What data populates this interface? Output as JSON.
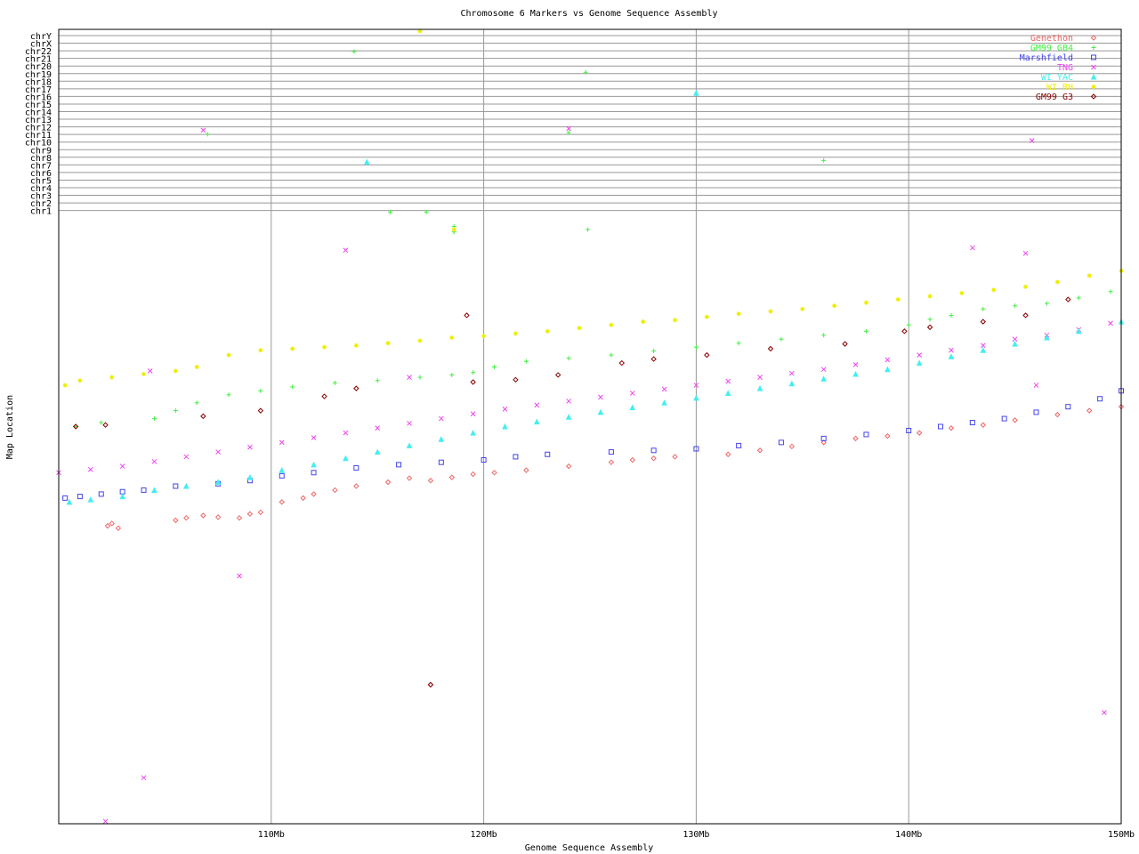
{
  "chart_data": {
    "type": "scatter",
    "title": "Chromosome 6 Markers vs Genome Sequence Assembly",
    "xlabel": "Genome Sequence Assembly",
    "ylabel": "Map Location",
    "xlim": [
      100,
      150
    ],
    "x_ticks": [
      {
        "value": 110,
        "label": "110Mb"
      },
      {
        "value": 120,
        "label": "120Mb"
      },
      {
        "value": 130,
        "label": "130Mb"
      },
      {
        "value": 140,
        "label": "140Mb"
      },
      {
        "value": 150,
        "label": "150Mb"
      }
    ],
    "grid": true,
    "legend_position": "top-right",
    "chromosome_lanes": [
      "chr1",
      "chr2",
      "chr3",
      "chr4",
      "chr5",
      "chr6",
      "chr7",
      "chr8",
      "chr9",
      "chr10",
      "chr11",
      "chr12",
      "chr13",
      "chr14",
      "chr15",
      "chr16",
      "chr17",
      "chr18",
      "chr19",
      "chr20",
      "chr21",
      "chr22",
      "chrX",
      "chrY"
    ],
    "series": [
      {
        "name": "Genethon",
        "color": "#ee6666",
        "marker": "diamond",
        "points": [
          [
            102.3,
            0.375
          ],
          [
            102.5,
            0.378
          ],
          [
            102.8,
            0.372
          ],
          [
            105.5,
            0.382
          ],
          [
            106.0,
            0.385
          ],
          [
            106.8,
            0.388
          ],
          [
            107.5,
            0.386
          ],
          [
            108.5,
            0.385
          ],
          [
            109.0,
            0.39
          ],
          [
            109.5,
            0.392
          ],
          [
            110.5,
            0.405
          ],
          [
            111.5,
            0.41
          ],
          [
            112.0,
            0.415
          ],
          [
            113.0,
            0.42
          ],
          [
            114.0,
            0.425
          ],
          [
            115.5,
            0.43
          ],
          [
            116.5,
            0.435
          ],
          [
            117.5,
            0.432
          ],
          [
            118.5,
            0.436
          ],
          [
            119.5,
            0.44
          ],
          [
            120.5,
            0.442
          ],
          [
            122.0,
            0.445
          ],
          [
            124.0,
            0.45
          ],
          [
            126.0,
            0.455
          ],
          [
            127.0,
            0.458
          ],
          [
            128.0,
            0.46
          ],
          [
            129.0,
            0.462
          ],
          [
            131.5,
            0.465
          ],
          [
            133.0,
            0.47
          ],
          [
            134.5,
            0.475
          ],
          [
            136.0,
            0.48
          ],
          [
            137.5,
            0.485
          ],
          [
            139.0,
            0.488
          ],
          [
            140.5,
            0.492
          ],
          [
            142.0,
            0.498
          ],
          [
            143.5,
            0.502
          ],
          [
            145.0,
            0.508
          ],
          [
            147.0,
            0.515
          ],
          [
            148.5,
            0.52
          ],
          [
            150.0,
            0.525
          ],
          [
            117.5,
            0.175
          ]
        ]
      },
      {
        "name": "GM99 GB4",
        "color": "#44ee44",
        "marker": "plus",
        "points": [
          [
            100.8,
            0.5
          ],
          [
            102.0,
            0.505
          ],
          [
            104.5,
            0.51
          ],
          [
            105.5,
            0.52
          ],
          [
            106.5,
            0.53
          ],
          [
            108.0,
            0.54
          ],
          [
            109.5,
            0.545
          ],
          [
            111.0,
            0.55
          ],
          [
            113.0,
            0.555
          ],
          [
            115.0,
            0.558
          ],
          [
            117.0,
            0.562
          ],
          [
            118.5,
            0.565
          ],
          [
            119.5,
            0.568
          ],
          [
            120.5,
            0.575
          ],
          [
            122.0,
            0.582
          ],
          [
            124.0,
            0.586
          ],
          [
            126.0,
            0.59
          ],
          [
            128.0,
            0.595
          ],
          [
            130.0,
            0.6
          ],
          [
            132.0,
            0.605
          ],
          [
            134.0,
            0.61
          ],
          [
            136.0,
            0.615
          ],
          [
            138.0,
            0.62
          ],
          [
            140.0,
            0.628
          ],
          [
            141.0,
            0.635
          ],
          [
            142.0,
            0.64
          ],
          [
            143.5,
            0.648
          ],
          [
            145.0,
            0.652
          ],
          [
            146.5,
            0.655
          ],
          [
            148.0,
            0.662
          ],
          [
            149.5,
            0.67
          ],
          [
            118.6,
            0.745
          ],
          [
            118.6,
            0.752
          ],
          [
            107.0,
            0.868
          ],
          [
            113.9,
            0.972
          ],
          [
            124.8,
            0.946
          ],
          [
            124.0,
            0.87
          ],
          [
            136.0,
            0.835
          ],
          [
            115.6,
            0.77
          ],
          [
            117.3,
            0.77
          ],
          [
            124.9,
            0.748
          ]
        ]
      },
      {
        "name": "Marshfield",
        "color": "#4444ee",
        "marker": "square",
        "points": [
          [
            100.3,
            0.41
          ],
          [
            101.0,
            0.412
          ],
          [
            102.0,
            0.415
          ],
          [
            103.0,
            0.418
          ],
          [
            104.0,
            0.42
          ],
          [
            105.5,
            0.425
          ],
          [
            107.5,
            0.428
          ],
          [
            109.0,
            0.432
          ],
          [
            110.5,
            0.438
          ],
          [
            112.0,
            0.442
          ],
          [
            114.0,
            0.448
          ],
          [
            116.0,
            0.452
          ],
          [
            118.0,
            0.455
          ],
          [
            120.0,
            0.458
          ],
          [
            121.5,
            0.462
          ],
          [
            123.0,
            0.465
          ],
          [
            126.0,
            0.468
          ],
          [
            128.0,
            0.47
          ],
          [
            130.0,
            0.472
          ],
          [
            132.0,
            0.476
          ],
          [
            134.0,
            0.48
          ],
          [
            136.0,
            0.485
          ],
          [
            138.0,
            0.49
          ],
          [
            140.0,
            0.495
          ],
          [
            141.5,
            0.5
          ],
          [
            143.0,
            0.505
          ],
          [
            144.5,
            0.51
          ],
          [
            146.0,
            0.518
          ],
          [
            147.5,
            0.525
          ],
          [
            149.0,
            0.535
          ],
          [
            150.0,
            0.545
          ]
        ]
      },
      {
        "name": "TNG",
        "color": "#ee44ee",
        "marker": "cross",
        "points": [
          [
            100.0,
            0.442
          ],
          [
            101.5,
            0.446
          ],
          [
            103.0,
            0.45
          ],
          [
            104.5,
            0.456
          ],
          [
            106.0,
            0.462
          ],
          [
            107.5,
            0.468
          ],
          [
            109.0,
            0.474
          ],
          [
            110.5,
            0.48
          ],
          [
            112.0,
            0.486
          ],
          [
            113.5,
            0.492
          ],
          [
            115.0,
            0.498
          ],
          [
            116.5,
            0.504
          ],
          [
            118.0,
            0.51
          ],
          [
            119.5,
            0.516
          ],
          [
            121.0,
            0.522
          ],
          [
            122.5,
            0.527
          ],
          [
            124.0,
            0.532
          ],
          [
            125.5,
            0.537
          ],
          [
            127.0,
            0.542
          ],
          [
            128.5,
            0.547
          ],
          [
            130.0,
            0.552
          ],
          [
            131.5,
            0.557
          ],
          [
            133.0,
            0.562
          ],
          [
            134.5,
            0.567
          ],
          [
            136.0,
            0.572
          ],
          [
            137.5,
            0.578
          ],
          [
            139.0,
            0.584
          ],
          [
            140.5,
            0.59
          ],
          [
            142.0,
            0.596
          ],
          [
            143.5,
            0.602
          ],
          [
            145.0,
            0.61
          ],
          [
            146.5,
            0.615
          ],
          [
            148.0,
            0.622
          ],
          [
            149.5,
            0.63
          ],
          [
            143.0,
            0.725
          ],
          [
            145.5,
            0.718
          ],
          [
            113.5,
            0.722
          ],
          [
            104.3,
            0.57
          ],
          [
            116.5,
            0.562
          ],
          [
            108.5,
            0.312
          ],
          [
            104.0,
            0.058
          ],
          [
            102.2,
            0.003
          ],
          [
            106.8,
            0.873
          ],
          [
            124.0,
            0.875
          ],
          [
            145.8,
            0.86
          ],
          [
            149.2,
            0.14
          ],
          [
            146.0,
            0.552
          ]
        ]
      },
      {
        "name": "WI YAC",
        "color": "#44eeee",
        "marker": "triangle",
        "points": [
          [
            100.5,
            0.405
          ],
          [
            101.5,
            0.408
          ],
          [
            103.0,
            0.412
          ],
          [
            104.5,
            0.42
          ],
          [
            106.0,
            0.425
          ],
          [
            107.5,
            0.43
          ],
          [
            109.0,
            0.436
          ],
          [
            110.5,
            0.445
          ],
          [
            112.0,
            0.452
          ],
          [
            113.5,
            0.46
          ],
          [
            115.0,
            0.468
          ],
          [
            116.5,
            0.476
          ],
          [
            118.0,
            0.484
          ],
          [
            119.5,
            0.492
          ],
          [
            121.0,
            0.5
          ],
          [
            122.5,
            0.506
          ],
          [
            124.0,
            0.512
          ],
          [
            125.5,
            0.518
          ],
          [
            127.0,
            0.524
          ],
          [
            128.5,
            0.53
          ],
          [
            130.0,
            0.536
          ],
          [
            131.5,
            0.542
          ],
          [
            133.0,
            0.548
          ],
          [
            134.5,
            0.554
          ],
          [
            136.0,
            0.56
          ],
          [
            137.5,
            0.566
          ],
          [
            139.0,
            0.572
          ],
          [
            140.5,
            0.58
          ],
          [
            142.0,
            0.588
          ],
          [
            143.5,
            0.596
          ],
          [
            145.0,
            0.604
          ],
          [
            146.5,
            0.612
          ],
          [
            148.0,
            0.62
          ],
          [
            150.0,
            0.632
          ],
          [
            114.5,
            0.833
          ],
          [
            130.0,
            0.92
          ]
        ]
      },
      {
        "name": "WI RH",
        "color": "#eeee00",
        "marker": "star",
        "points": [
          [
            100.3,
            0.552
          ],
          [
            101.0,
            0.558
          ],
          [
            102.5,
            0.562
          ],
          [
            104.0,
            0.566
          ],
          [
            105.5,
            0.57
          ],
          [
            106.5,
            0.575
          ],
          [
            108.0,
            0.59
          ],
          [
            109.5,
            0.596
          ],
          [
            111.0,
            0.598
          ],
          [
            112.5,
            0.6
          ],
          [
            114.0,
            0.602
          ],
          [
            115.5,
            0.605
          ],
          [
            117.0,
            0.608
          ],
          [
            118.5,
            0.612
          ],
          [
            120.0,
            0.614
          ],
          [
            121.5,
            0.617
          ],
          [
            123.0,
            0.62
          ],
          [
            124.5,
            0.624
          ],
          [
            126.0,
            0.628
          ],
          [
            127.5,
            0.632
          ],
          [
            129.0,
            0.634
          ],
          [
            130.5,
            0.638
          ],
          [
            132.0,
            0.642
          ],
          [
            133.5,
            0.645
          ],
          [
            135.0,
            0.648
          ],
          [
            136.5,
            0.652
          ],
          [
            138.0,
            0.656
          ],
          [
            139.5,
            0.66
          ],
          [
            141.0,
            0.664
          ],
          [
            142.5,
            0.668
          ],
          [
            144.0,
            0.672
          ],
          [
            145.5,
            0.676
          ],
          [
            147.0,
            0.682
          ],
          [
            148.5,
            0.69
          ],
          [
            150.0,
            0.696
          ],
          [
            117.0,
            0.998
          ],
          [
            118.6,
            0.748
          ]
        ]
      },
      {
        "name": "GM99 G3",
        "color": "#880000",
        "marker": "diamond",
        "points": [
          [
            100.8,
            0.5
          ],
          [
            102.2,
            0.502
          ],
          [
            106.8,
            0.513
          ],
          [
            109.5,
            0.52
          ],
          [
            112.5,
            0.538
          ],
          [
            114.0,
            0.548
          ],
          [
            119.5,
            0.556
          ],
          [
            121.5,
            0.559
          ],
          [
            123.5,
            0.565
          ],
          [
            126.5,
            0.58
          ],
          [
            128.0,
            0.585
          ],
          [
            130.5,
            0.59
          ],
          [
            133.5,
            0.598
          ],
          [
            137.0,
            0.604
          ],
          [
            139.8,
            0.62
          ],
          [
            141.0,
            0.625
          ],
          [
            143.5,
            0.632
          ],
          [
            145.5,
            0.64
          ],
          [
            147.5,
            0.66
          ],
          [
            119.2,
            0.64
          ],
          [
            117.5,
            0.175
          ]
        ]
      }
    ]
  }
}
